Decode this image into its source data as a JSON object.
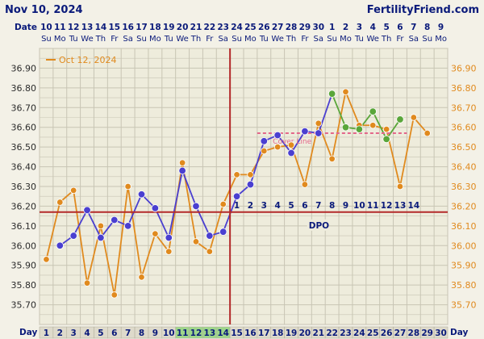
{
  "header": {
    "date": "Nov 10, 2024",
    "site": "FertilityFriend.com"
  },
  "row_labels": {
    "date": "Date",
    "day": "Day"
  },
  "legend": {
    "label": "Oct 12, 2024"
  },
  "colors": {
    "current": "#4a3fd0",
    "overlay": "#e08a1e",
    "coverline": "#e3678a",
    "phase": "#5aa63a",
    "vline": "#b32a2a",
    "grid": "#c8c5b4",
    "fertile": "#9ed68a"
  },
  "chart_data": {
    "type": "line",
    "ylim": [
      35.6,
      37.0
    ],
    "y_ticks": [
      "36.90",
      "36.80",
      "36.70",
      "36.60",
      "36.50",
      "36.40",
      "36.30",
      "36.20",
      "36.10",
      "36.00",
      "35.90",
      "35.80",
      "35.70"
    ],
    "y_tick_values": [
      36.9,
      36.8,
      36.7,
      36.6,
      36.5,
      36.4,
      36.3,
      36.2,
      36.1,
      36.0,
      35.9,
      35.8,
      35.7
    ],
    "date_numbers": [
      "10",
      "11",
      "12",
      "13",
      "14",
      "15",
      "16",
      "17",
      "18",
      "19",
      "20",
      "21",
      "22",
      "23",
      "24",
      "25",
      "26",
      "27",
      "28",
      "29",
      "30",
      "1",
      "2",
      "3",
      "4",
      "5",
      "6",
      "7",
      "8",
      "9"
    ],
    "weekdays": [
      "Su",
      "Mo",
      "Tu",
      "We",
      "Th",
      "Fr",
      "Sa",
      "Su",
      "Mo",
      "Tu",
      "We",
      "Th",
      "Fr",
      "Sa",
      "Su",
      "Mo",
      "Tu",
      "We",
      "Th",
      "Fr",
      "Sa",
      "Su",
      "Mo",
      "Tu",
      "We",
      "Th",
      "Fr",
      "Sa",
      "Su",
      "Mo"
    ],
    "days": [
      "1",
      "2",
      "3",
      "4",
      "5",
      "6",
      "7",
      "8",
      "9",
      "10",
      "11",
      "12",
      "13",
      "14",
      "15",
      "16",
      "17",
      "18",
      "19",
      "20",
      "21",
      "22",
      "23",
      "24",
      "25",
      "26",
      "27",
      "28",
      "29",
      "30"
    ],
    "fertile_days": [
      11,
      12,
      13,
      14
    ],
    "ovulation_day": 14,
    "coverline": {
      "value": 36.17,
      "label": ""
    },
    "sub_coverline": {
      "value": 36.57,
      "from_day": 17,
      "to_day": 27,
      "label": "Cover Line"
    },
    "dpo_label": "DPO",
    "dpo_numbers": [
      "1",
      "2",
      "3",
      "4",
      "5",
      "6",
      "7",
      "8",
      "9",
      "10",
      "11",
      "12",
      "13",
      "14"
    ],
    "series": [
      {
        "name": "",
        "color": "#4a3fd0",
        "days": [
          2,
          3,
          4,
          5,
          6,
          7,
          8,
          9,
          10,
          11,
          12,
          13,
          14,
          15,
          16,
          17,
          18,
          19,
          20,
          21,
          22
        ],
        "values": [
          36.0,
          36.05,
          36.18,
          36.04,
          36.13,
          36.1,
          36.26,
          36.19,
          36.04,
          36.38,
          36.2,
          36.05,
          36.07,
          36.25,
          36.31,
          36.53,
          36.56,
          36.47,
          36.58,
          36.57,
          36.77
        ]
      },
      {
        "name": "",
        "color": "#5aa63a",
        "days": [
          22,
          23,
          24,
          25,
          26,
          27
        ],
        "values": [
          36.77,
          36.6,
          36.59,
          36.68,
          36.54,
          36.64
        ]
      },
      {
        "name": "Oct 12, 2024",
        "color": "#e08a1e",
        "days": [
          1,
          2,
          3,
          4,
          5,
          6,
          7,
          8,
          9,
          10,
          11,
          12,
          13,
          14,
          15,
          16,
          17,
          18,
          19,
          20,
          21,
          22,
          23,
          24,
          25,
          26,
          27,
          28,
          29
        ],
        "values": [
          35.93,
          36.22,
          36.28,
          35.81,
          36.1,
          35.75,
          36.3,
          35.84,
          36.06,
          35.97,
          36.42,
          36.02,
          35.97,
          36.21,
          36.36,
          36.36,
          36.48,
          36.5,
          36.51,
          36.31,
          36.62,
          36.44,
          36.78,
          36.61,
          36.61,
          36.59,
          36.3,
          36.65,
          36.57
        ]
      }
    ]
  }
}
